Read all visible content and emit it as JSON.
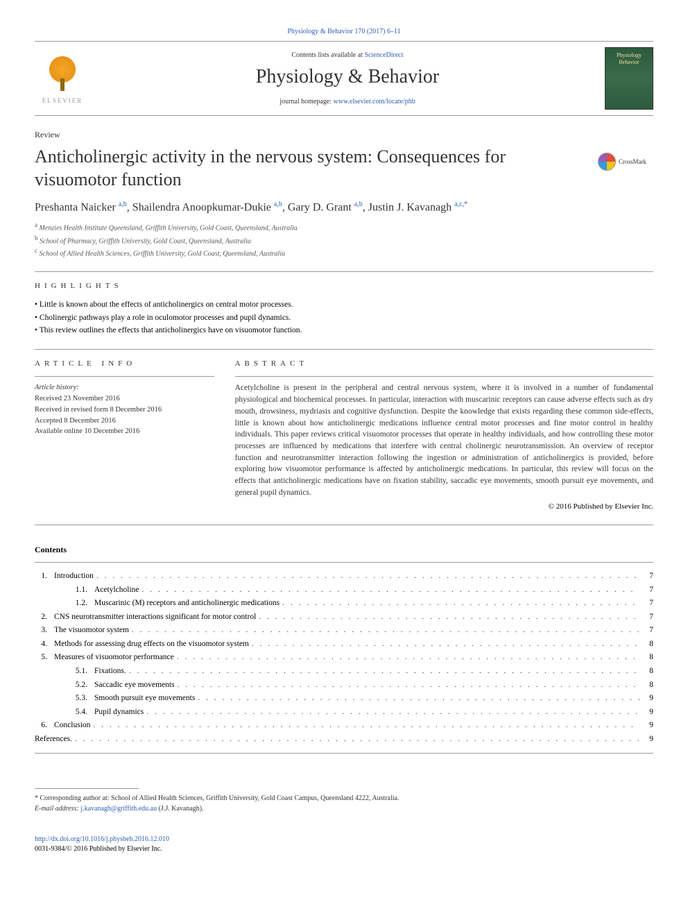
{
  "top_citation": "Physiology & Behavior 170 (2017) 6–11",
  "masthead": {
    "contents_prefix": "Contents lists available at ",
    "contents_link": "ScienceDirect",
    "journal_name": "Physiology & Behavior",
    "homepage_prefix": "journal homepage: ",
    "homepage_url": "www.elsevier.com/locate/phb",
    "publisher": "ELSEVIER",
    "cover_text_1": "Physiology",
    "cover_text_2": "Behavior"
  },
  "article_type": "Review",
  "article_title": "Anticholinergic activity in the nervous system: Consequences for visuomotor function",
  "crossmark_label": "CrossMark",
  "authors_html": "Preshanta Naicker <sup>a,b</sup>, Shailendra Anoopkumar-Dukie <sup>a,b</sup>, Gary D. Grant <sup>a,b</sup>, Justin J. Kavanagh <sup>a,c,*</sup>",
  "affiliations": [
    {
      "sup": "a",
      "text": "Menzies Health Institute Queensland, Griffith University, Gold Coast, Queensland, Australia"
    },
    {
      "sup": "b",
      "text": "School of Pharmacy, Griffith University, Gold Coast, Queensland, Australia"
    },
    {
      "sup": "c",
      "text": "School of Allied Health Sciences, Griffith University, Gold Coast, Queensland, Australia"
    }
  ],
  "highlights_label": "HIGHLIGHTS",
  "highlights": [
    "Little is known about the effects of anticholinergics on central motor processes.",
    "Cholinergic pathways play a role in oculomotor processes and pupil dynamics.",
    "This review outlines the effects that anticholinergics have on visuomotor function."
  ],
  "article_info_label": "ARTICLE INFO",
  "abstract_label": "ABSTRACT",
  "history": {
    "label": "Article history:",
    "received": "Received 23 November 2016",
    "revised": "Received in revised form 8 December 2016",
    "accepted": "Accepted 8 December 2016",
    "online": "Available online 10 December 2016"
  },
  "abstract_text": "Acetylcholine is present in the peripheral and central nervous system, where it is involved in a number of fundamental physiological and biochemical processes. In particular, interaction with muscarinic receptors can cause adverse effects such as dry mouth, drowsiness, mydriasis and cognitive dysfunction. Despite the knowledge that exists regarding these common side-effects, little is known about how anticholinergic medications influence central motor processes and fine motor control in healthy individuals. This paper reviews critical visuomotor processes that operate in healthy individuals, and how controlling these motor processes are influenced by medications that interfere with central cholinergic neurotransmission. An overview of receptor function and neurotransmitter interaction following the ingestion or administration of anticholinergics is provided, before exploring how visuomotor performance is affected by anticholinergic medications. In particular, this review will focus on the effects that anticholinergic medications have on fixation stability, saccadic eye movements, smooth pursuit eye movements, and general pupil dynamics.",
  "copyright": "© 2016 Published by Elsevier Inc.",
  "contents_heading": "Contents",
  "toc": [
    {
      "num": "1.",
      "sub": "",
      "title": "Introduction",
      "page": "7"
    },
    {
      "num": "",
      "sub": "1.1.",
      "title": "Acetylcholine",
      "page": "7"
    },
    {
      "num": "",
      "sub": "1.2.",
      "title": "Muscarinic (M) receptors and anticholinergic medications",
      "page": "7"
    },
    {
      "num": "2.",
      "sub": "",
      "title": "CNS neurotransmitter interactions significant for motor control",
      "page": "7"
    },
    {
      "num": "3.",
      "sub": "",
      "title": "The visuomotor system",
      "page": "7"
    },
    {
      "num": "4.",
      "sub": "",
      "title": "Methods for assessing drug effects on the visuomotor system",
      "page": "8"
    },
    {
      "num": "5.",
      "sub": "",
      "title": "Measures of visuomotor performance",
      "page": "8"
    },
    {
      "num": "",
      "sub": "5.1.",
      "title": "Fixations.",
      "page": "8"
    },
    {
      "num": "",
      "sub": "5.2.",
      "title": "Saccadic eye movements",
      "page": "8"
    },
    {
      "num": "",
      "sub": "5.3.",
      "title": "Smooth pursuit eye movements",
      "page": "9"
    },
    {
      "num": "",
      "sub": "5.4.",
      "title": "Pupil dynamics",
      "page": "9"
    },
    {
      "num": "6.",
      "sub": "",
      "title": "Conclusion",
      "page": "9"
    },
    {
      "num": "",
      "sub": "",
      "title": "References.",
      "page": "9",
      "flush": true
    }
  ],
  "corresponding": {
    "star": "*",
    "text": "Corresponding author at: School of Allied Health Sciences, Griffith University, Gold Coast Campus, Queensland 4222, Australia.",
    "email_label": "E-mail address:",
    "email": "j.kavanagh@griffith.edu.au",
    "email_suffix": "(J.J. Kavanagh)."
  },
  "doi": {
    "url": "http://dx.doi.org/10.1016/j.physbeh.2016.12.010",
    "issn_line": "0031-9384/© 2016 Published by Elsevier Inc."
  },
  "colors": {
    "link": "#2a5db0",
    "text": "#333333",
    "rule": "#999999"
  }
}
